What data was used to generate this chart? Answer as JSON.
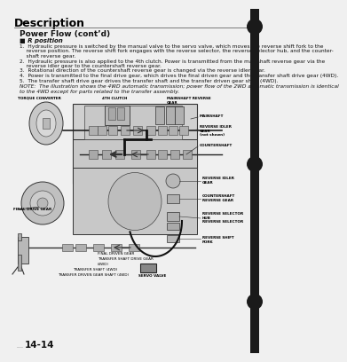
{
  "title": "Description",
  "subtitle": "Power Flow (cont’d)",
  "section_label": "R position",
  "body_lines": [
    "1.  Hydraulic pressure is switched by the manual valve to the servo valve, which moves the reverse shift fork to the",
    "    reverse position. The reverse shift fork engages with the reverse selector, the reverse selector hub, and the counter-",
    "    shaft reverse gear.",
    "2.  Hydraulic pressure is also applied to the 4th clutch. Power is transmitted from the mainshaft reverse gear via the",
    "    reverse idler gear to the countershaft reverse gear.",
    "3.  Rotational direction of the countershaft reverse gear is changed via the reverse idler gear.",
    "4.  Power is transmitted to the final drive gear, which drives the final driven gear and the transfer shaft drive gear (4WD).",
    "5.  The transfer shaft drive gear drives the transfer shaft and the transfer driven gear shaft (4WD)."
  ],
  "note_lines": [
    "NOTE:  The illustration shows the 4WD automatic transmission; power flow of the 2WD automatic transmission is identical",
    "to the 4WD except for parts related to the transfer assembly."
  ],
  "page_number": "14-14",
  "bg_color": "#f0f0f0",
  "diagram_bg": "#e8e8e8",
  "text_color": "#111111",
  "title_color": "#000000",
  "binding_bar_color": "#1a1a1a",
  "binding_dot_color": "#1a1a1a",
  "line_color": "#333333"
}
